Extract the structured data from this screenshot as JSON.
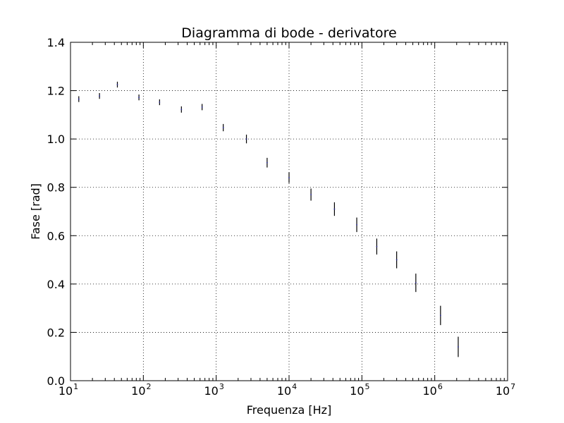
{
  "chart_data": {
    "type": "scatter",
    "title": "Diagramma di bode - derivatore",
    "xlabel": "Frequenza [Hz]",
    "ylabel": "Fase [rad]",
    "xscale": "log",
    "xlim": [
      10,
      10000000
    ],
    "ylim": [
      0.0,
      1.4
    ],
    "grid": true,
    "grid_style": "dotted",
    "x_ticks": [
      {
        "value": 10,
        "base": "10",
        "exp": "1"
      },
      {
        "value": 100,
        "base": "10",
        "exp": "2"
      },
      {
        "value": 1000,
        "base": "10",
        "exp": "3"
      },
      {
        "value": 10000,
        "base": "10",
        "exp": "4"
      },
      {
        "value": 100000,
        "base": "10",
        "exp": "5"
      },
      {
        "value": 1000000,
        "base": "10",
        "exp": "6"
      },
      {
        "value": 10000000,
        "base": "10",
        "exp": "7"
      }
    ],
    "y_ticks": [
      {
        "value": 0.0,
        "label": "0.0"
      },
      {
        "value": 0.2,
        "label": "0.2"
      },
      {
        "value": 0.4,
        "label": "0.4"
      },
      {
        "value": 0.6,
        "label": "0.6"
      },
      {
        "value": 0.8,
        "label": "0.8"
      },
      {
        "value": 1.0,
        "label": "1.0"
      },
      {
        "value": 1.2,
        "label": "1.2"
      },
      {
        "value": 1.4,
        "label": "1.4"
      }
    ],
    "series": [
      {
        "color": "#000000",
        "marker_color": "#1f1f8f",
        "points": [
          {
            "x": 13,
            "y": 1.165,
            "err": 0.012
          },
          {
            "x": 25,
            "y": 1.178,
            "err": 0.012
          },
          {
            "x": 44,
            "y": 1.225,
            "err": 0.012
          },
          {
            "x": 87,
            "y": 1.172,
            "err": 0.012
          },
          {
            "x": 167,
            "y": 1.152,
            "err": 0.012
          },
          {
            "x": 333,
            "y": 1.122,
            "err": 0.013
          },
          {
            "x": 640,
            "y": 1.132,
            "err": 0.013
          },
          {
            "x": 1250,
            "y": 1.047,
            "err": 0.015
          },
          {
            "x": 2600,
            "y": 1.0,
            "err": 0.018
          },
          {
            "x": 5000,
            "y": 0.902,
            "err": 0.02
          },
          {
            "x": 10000,
            "y": 0.84,
            "err": 0.022
          },
          {
            "x": 20000,
            "y": 0.77,
            "err": 0.025
          },
          {
            "x": 42000,
            "y": 0.71,
            "err": 0.028
          },
          {
            "x": 85000,
            "y": 0.645,
            "err": 0.03
          },
          {
            "x": 160000,
            "y": 0.555,
            "err": 0.033
          },
          {
            "x": 300000,
            "y": 0.5,
            "err": 0.035
          },
          {
            "x": 550000,
            "y": 0.405,
            "err": 0.038
          },
          {
            "x": 1200000,
            "y": 0.27,
            "err": 0.04
          },
          {
            "x": 2100000,
            "y": 0.14,
            "err": 0.042
          }
        ]
      }
    ]
  }
}
